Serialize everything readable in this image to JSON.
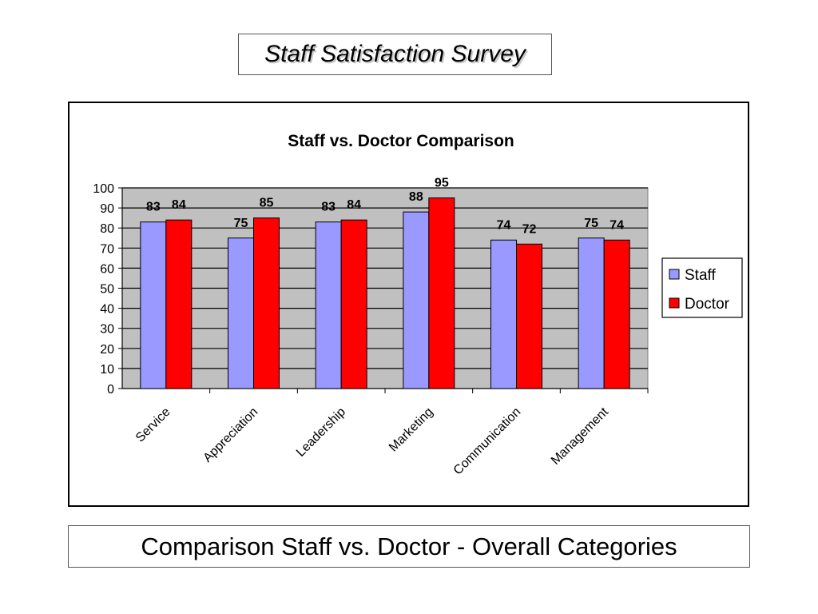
{
  "slide": {
    "title": "Staff Satisfaction Survey",
    "caption": "Comparison Staff vs. Doctor - Overall Categories"
  },
  "chart_data": {
    "type": "bar",
    "title": "Staff vs. Doctor Comparison",
    "categories": [
      "Service",
      "Appreciation",
      "Leadership",
      "Marketing",
      "Communication",
      "Management"
    ],
    "series": [
      {
        "name": "Staff",
        "values": [
          83,
          75,
          83,
          88,
          74,
          75
        ],
        "color": "#9999ff"
      },
      {
        "name": "Doctor",
        "values": [
          84,
          85,
          84,
          95,
          72,
          74
        ],
        "color": "#ff0000"
      }
    ],
    "ylim": [
      0,
      100
    ],
    "yticks": [
      0,
      10,
      20,
      30,
      40,
      50,
      60,
      70,
      80,
      90,
      100
    ],
    "grid": true,
    "plot_background": "#c0c0c0",
    "legend": "right",
    "data_labels": true
  }
}
